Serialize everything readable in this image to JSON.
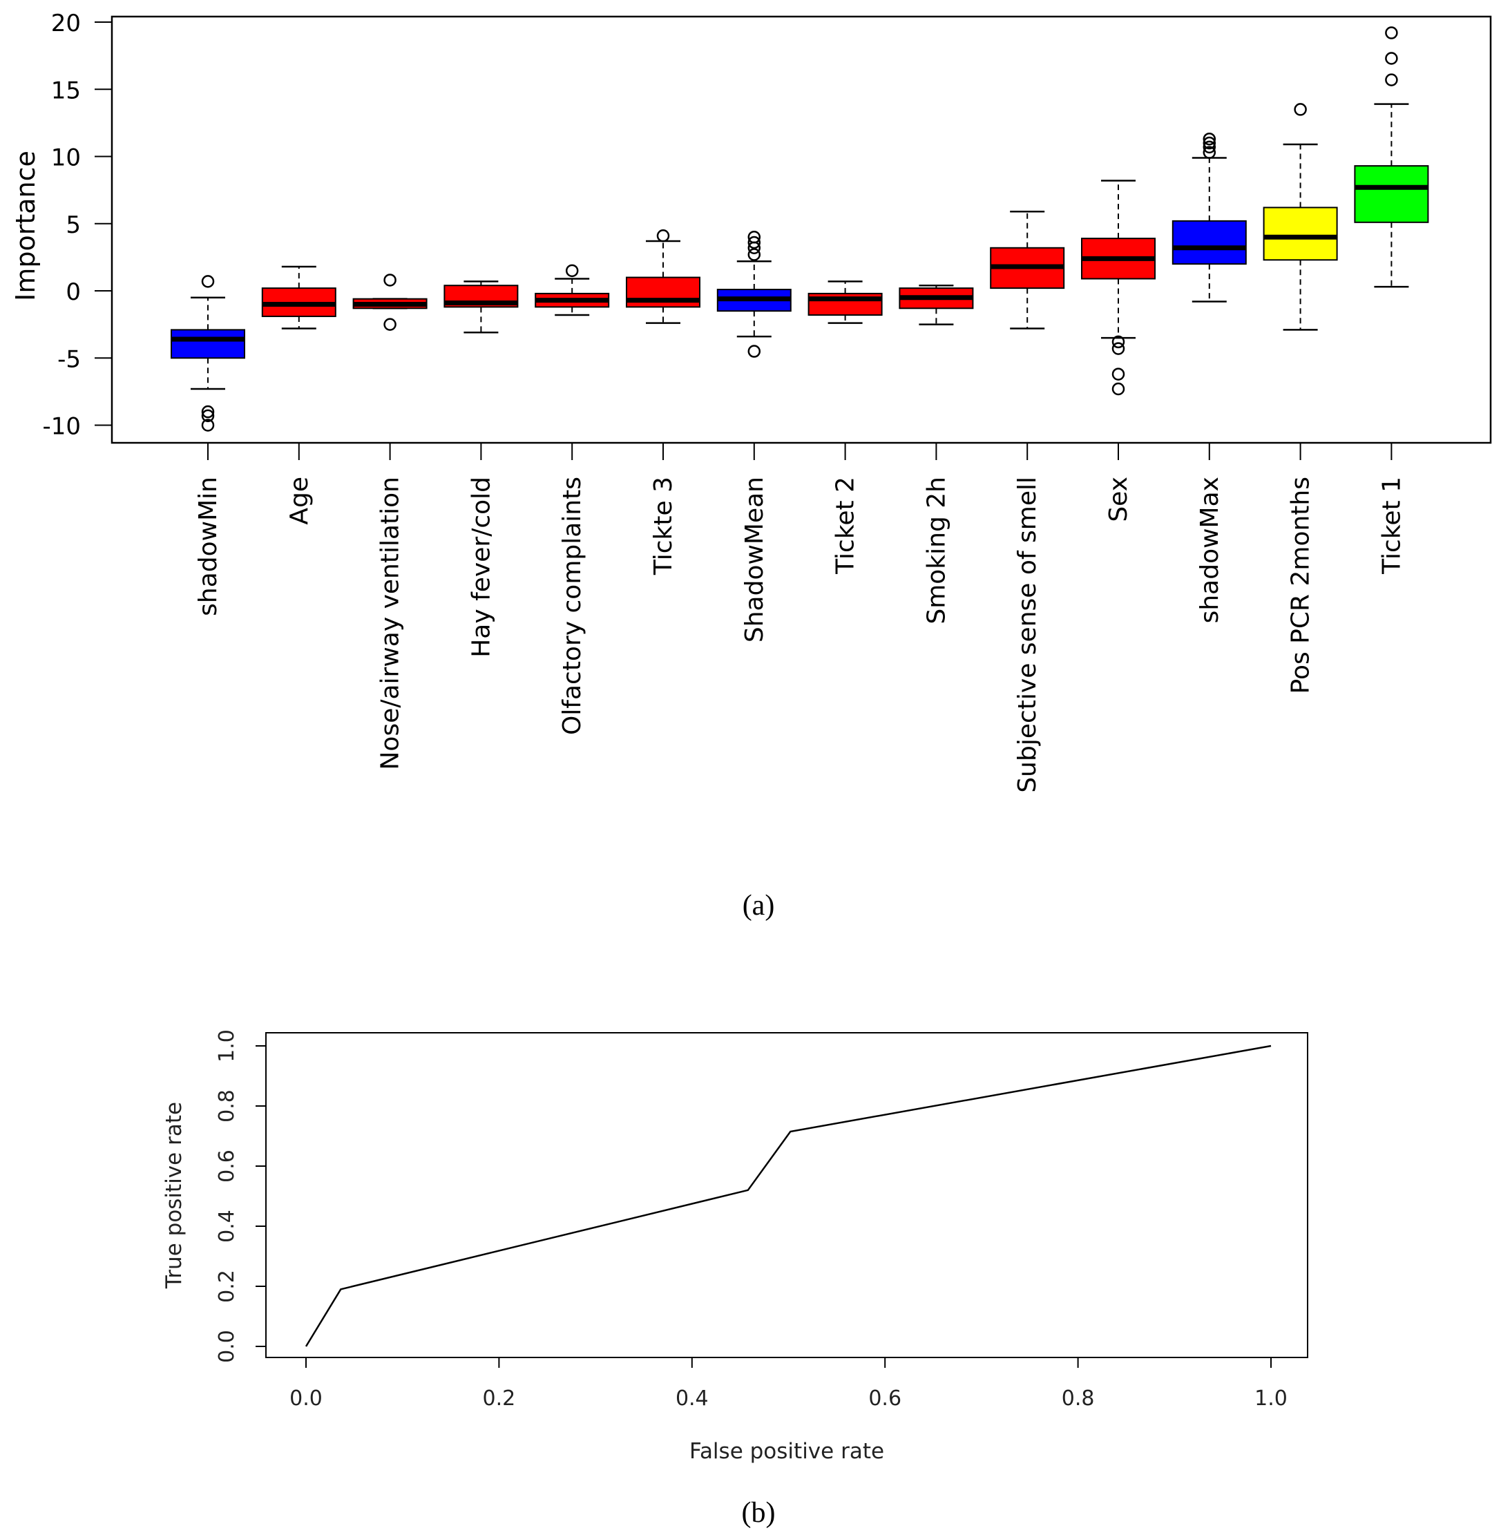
{
  "panel_labels": {
    "a": "(a)",
    "b": "(b)"
  },
  "colors": {
    "rejected": "#ff0000",
    "shadow": "#0000ff",
    "tentative": "#ffff00",
    "confirmed": "#00ff00",
    "line": "#000000"
  },
  "chart_data": [
    {
      "type": "box",
      "title": "",
      "xlabel": "",
      "ylabel": "Importance",
      "ylim": [
        -11,
        20.5
      ],
      "yticks": [
        "-10",
        "-5",
        "0",
        "5",
        "10",
        "15",
        "20"
      ],
      "categories": [
        "shadowMin",
        "Age",
        "Nose/airway ventilation",
        "Hay fever/cold",
        "Olfactory complaints",
        "Tickte 3",
        "ShadowMean",
        "Ticket 2",
        "Smoking 2h",
        "Subjective sense of smell",
        "Sex",
        "shadowMax",
        "Pos PCR 2months",
        "Ticket 1"
      ],
      "boxes": [
        {
          "name": "shadowMin",
          "color": "blue",
          "whisker_low": -7.3,
          "q1": -5.0,
          "median": -3.6,
          "q3": -2.9,
          "whisker_high": -0.5,
          "outliers": [
            0.7,
            -9.0,
            -9.3,
            -10.0
          ]
        },
        {
          "name": "Age",
          "color": "red",
          "whisker_low": -2.8,
          "q1": -1.9,
          "median": -1.0,
          "q3": 0.2,
          "whisker_high": 1.8,
          "outliers": []
        },
        {
          "name": "Nose/airway ventilation",
          "color": "red",
          "whisker_low": -1.3,
          "q1": -1.3,
          "median": -1.0,
          "q3": -0.6,
          "whisker_high": -0.6,
          "outliers": [
            0.8,
            -2.5
          ]
        },
        {
          "name": "Hay fever/cold",
          "color": "red",
          "whisker_low": -3.1,
          "q1": -1.2,
          "median": -0.9,
          "q3": 0.4,
          "whisker_high": 0.7,
          "outliers": []
        },
        {
          "name": "Olfactory complaints",
          "color": "red",
          "whisker_low": -1.8,
          "q1": -1.2,
          "median": -0.7,
          "q3": -0.2,
          "whisker_high": 0.9,
          "outliers": [
            1.5
          ]
        },
        {
          "name": "Tickte 3",
          "color": "red",
          "whisker_low": -2.4,
          "q1": -1.2,
          "median": -0.7,
          "q3": 1.0,
          "whisker_high": 3.7,
          "outliers": [
            4.1
          ]
        },
        {
          "name": "ShadowMean",
          "color": "blue",
          "whisker_low": -3.4,
          "q1": -1.5,
          "median": -0.6,
          "q3": 0.1,
          "whisker_high": 2.2,
          "outliers": [
            2.7,
            3.2,
            3.6,
            4.0,
            -4.5
          ]
        },
        {
          "name": "Ticket 2",
          "color": "red",
          "whisker_low": -2.4,
          "q1": -1.8,
          "median": -0.6,
          "q3": -0.2,
          "whisker_high": 0.7,
          "outliers": []
        },
        {
          "name": "Smoking 2h",
          "color": "red",
          "whisker_low": -2.5,
          "q1": -1.3,
          "median": -0.5,
          "q3": 0.2,
          "whisker_high": 0.4,
          "outliers": []
        },
        {
          "name": "Subjective sense of smell",
          "color": "red",
          "whisker_low": -2.8,
          "q1": 0.2,
          "median": 1.8,
          "q3": 3.2,
          "whisker_high": 5.9,
          "outliers": []
        },
        {
          "name": "Sex",
          "color": "red",
          "whisker_low": -3.5,
          "q1": 0.9,
          "median": 2.4,
          "q3": 3.9,
          "whisker_high": 8.2,
          "outliers": [
            -3.8,
            -4.3,
            -6.2,
            -7.3
          ]
        },
        {
          "name": "shadowMax",
          "color": "blue",
          "whisker_low": -0.8,
          "q1": 2.0,
          "median": 3.2,
          "q3": 5.2,
          "whisker_high": 9.9,
          "outliers": [
            10.3,
            10.7,
            11.0,
            11.3
          ]
        },
        {
          "name": "Pos PCR 2months",
          "color": "yellow",
          "whisker_low": -2.9,
          "q1": 2.3,
          "median": 4.0,
          "q3": 6.2,
          "whisker_high": 10.9,
          "outliers": [
            13.5
          ]
        },
        {
          "name": "Ticket 1",
          "color": "green",
          "whisker_low": 0.3,
          "q1": 5.1,
          "median": 7.7,
          "q3": 9.3,
          "whisker_high": 13.9,
          "outliers": [
            15.7,
            17.3,
            19.2
          ]
        }
      ]
    },
    {
      "type": "line",
      "title": "",
      "xlabel": "False positive rate",
      "ylabel": "True positive rate",
      "xlim": [
        0,
        1
      ],
      "ylim": [
        0,
        1
      ],
      "xticks": [
        "0.0",
        "0.2",
        "0.4",
        "0.6",
        "0.8",
        "1.0"
      ],
      "yticks": [
        "0.0",
        "0.2",
        "0.4",
        "0.6",
        "0.8",
        "1.0"
      ],
      "x": [
        0.0,
        0.036,
        0.458,
        0.502,
        1.0
      ],
      "y": [
        0.0,
        0.19,
        0.52,
        0.715,
        1.0
      ]
    }
  ]
}
